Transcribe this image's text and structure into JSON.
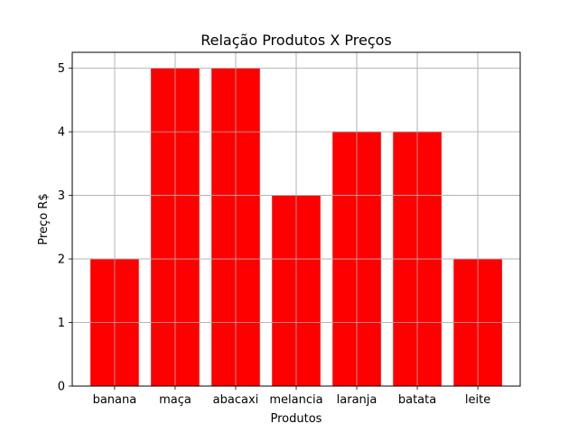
{
  "chart_data": {
    "type": "bar",
    "title": "Relação Produtos X Preços",
    "xlabel": "Produtos",
    "ylabel": "Preço R$",
    "categories": [
      "banana",
      "maça",
      "abacaxi",
      "melancia",
      "laranja",
      "batata",
      "leite"
    ],
    "values": [
      2,
      5,
      5,
      3,
      4,
      4,
      2
    ],
    "ylim": [
      0,
      5.25
    ],
    "yticks": [
      0,
      1,
      2,
      3,
      4,
      5
    ],
    "grid": true,
    "bar_color": "#ff0000"
  }
}
